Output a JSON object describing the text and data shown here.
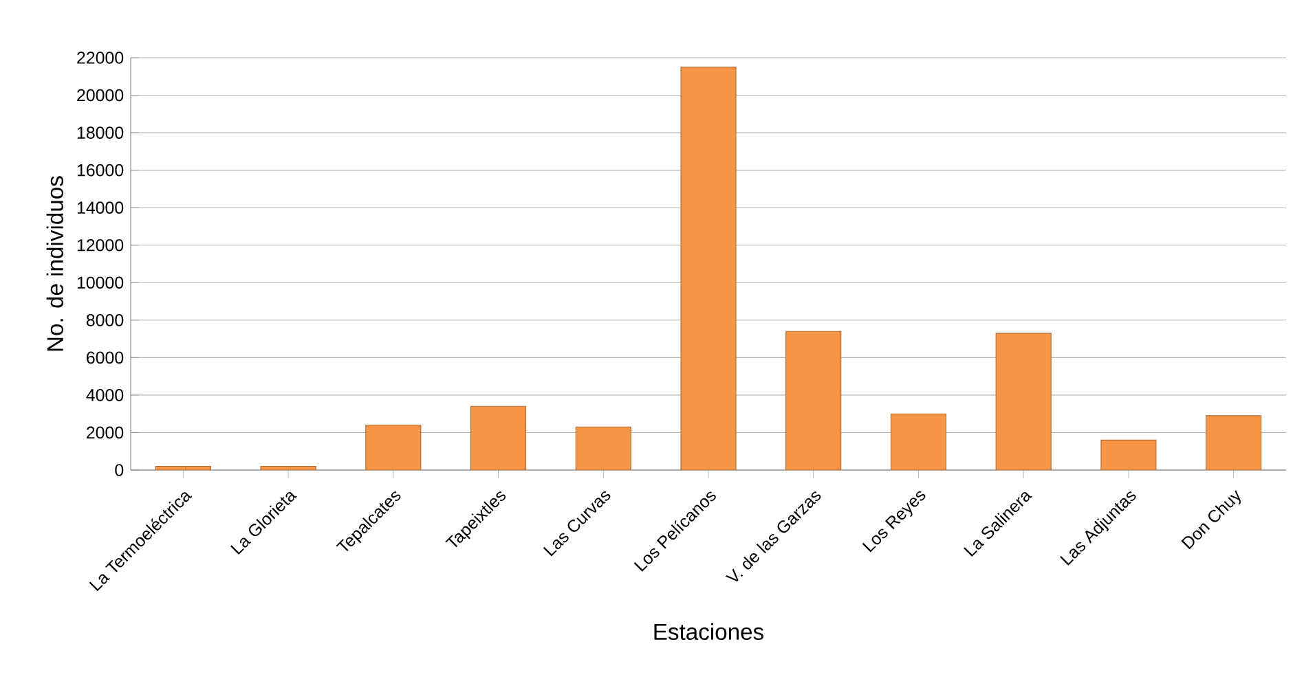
{
  "chart_data": {
    "type": "bar",
    "xlabel": "Estaciones",
    "ylabel": "No. de individuos",
    "categories": [
      "La Termoeléctrica",
      "La Glorieta",
      "Tepalcates",
      "Tapeixtles",
      "Las Curvas",
      "Los Pelícanos",
      "V. de las Garzas",
      "Los Reyes",
      "La Salinera",
      "Las Adjuntas",
      "Don Chuy"
    ],
    "values": [
      200,
      200,
      2400,
      3400,
      2300,
      21500,
      7400,
      3000,
      7300,
      1600,
      2900
    ],
    "color": "#f79646",
    "ylim": [
      0,
      22000
    ],
    "yticks": [
      0,
      2000,
      4000,
      6000,
      8000,
      10000,
      12000,
      14000,
      16000,
      18000,
      20000,
      22000
    ],
    "grid": "y"
  }
}
